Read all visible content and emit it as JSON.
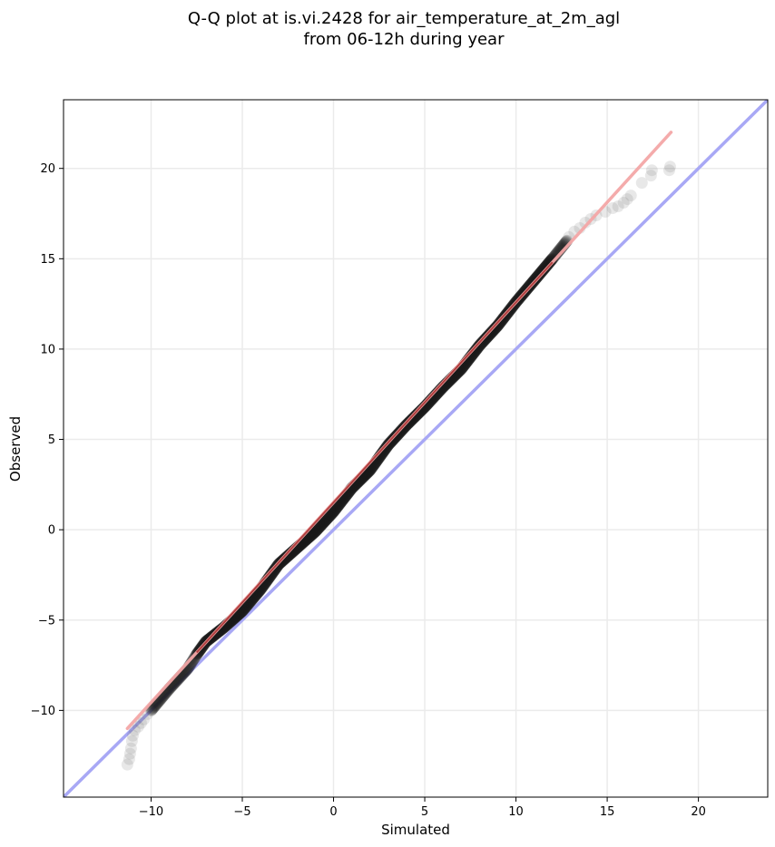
{
  "chart_data": {
    "type": "scatter",
    "title_line1": "Q-Q plot at is.vi.2428 for air_temperature_at_2m_agl",
    "title_line2": "from 06-12h during year",
    "xlabel": "Simulated",
    "ylabel": "Observed",
    "xlim": [
      -14.8,
      23.8
    ],
    "ylim": [
      -14.8,
      23.8
    ],
    "xticks": [
      -10,
      -5,
      0,
      5,
      10,
      15,
      20
    ],
    "yticks": [
      -10,
      -5,
      0,
      5,
      10,
      15,
      20
    ],
    "xtick_labels": [
      "−10",
      "−5",
      "0",
      "5",
      "10",
      "15",
      "20"
    ],
    "ytick_labels": [
      "−10",
      "−5",
      "0",
      "5",
      "10",
      "15",
      "20"
    ],
    "grid": true,
    "identity_line": {
      "color": "#a8a8f5",
      "x": [
        -14.8,
        23.8
      ],
      "y": [
        -14.8,
        23.8
      ]
    },
    "fit_line": {
      "color": "#f3a6a6",
      "x": [
        -11.3,
        18.5
      ],
      "y": [
        -11.0,
        22.0
      ]
    },
    "quantile_curve": {
      "x": [
        -10.0,
        -9.0,
        -8.0,
        -7.5,
        -7.0,
        -6.0,
        -5.0,
        -4.0,
        -3.0,
        -2.0,
        -1.0,
        0.0,
        1.0,
        2.0,
        3.0,
        4.0,
        5.0,
        6.0,
        7.0,
        8.0,
        9.0,
        10.0,
        11.0,
        12.0,
        12.8
      ],
      "y": [
        -10.0,
        -8.8,
        -7.7,
        -6.9,
        -6.2,
        -5.4,
        -4.5,
        -3.3,
        -1.9,
        -1.0,
        -0.1,
        1.0,
        2.3,
        3.3,
        4.7,
        5.8,
        6.8,
        7.9,
        8.9,
        10.2,
        11.3,
        12.6,
        13.8,
        15.0,
        16.0
      ]
    },
    "tail_points": [
      {
        "x": -11.3,
        "y": -13.0
      },
      {
        "x": -11.2,
        "y": -12.7
      },
      {
        "x": -11.15,
        "y": -12.4
      },
      {
        "x": -11.1,
        "y": -12.1
      },
      {
        "x": -11.05,
        "y": -11.7
      },
      {
        "x": -11.0,
        "y": -11.4
      },
      {
        "x": -10.9,
        "y": -11.1
      },
      {
        "x": -10.7,
        "y": -10.9
      },
      {
        "x": -10.55,
        "y": -10.7
      },
      {
        "x": -10.4,
        "y": -10.5
      },
      {
        "x": -10.2,
        "y": -10.2
      },
      {
        "x": 12.9,
        "y": 16.2
      },
      {
        "x": 13.2,
        "y": 16.5
      },
      {
        "x": 13.5,
        "y": 16.7
      },
      {
        "x": 13.8,
        "y": 17.0
      },
      {
        "x": 14.1,
        "y": 17.2
      },
      {
        "x": 14.4,
        "y": 17.4
      },
      {
        "x": 14.9,
        "y": 17.6
      },
      {
        "x": 15.3,
        "y": 17.8
      },
      {
        "x": 15.6,
        "y": 17.9
      },
      {
        "x": 15.9,
        "y": 18.1
      },
      {
        "x": 16.1,
        "y": 18.3
      },
      {
        "x": 16.3,
        "y": 18.5
      },
      {
        "x": 16.9,
        "y": 19.2
      },
      {
        "x": 17.4,
        "y": 19.6
      },
      {
        "x": 17.45,
        "y": 19.9
      },
      {
        "x": 18.4,
        "y": 19.9
      },
      {
        "x": 18.45,
        "y": 20.1
      }
    ]
  }
}
